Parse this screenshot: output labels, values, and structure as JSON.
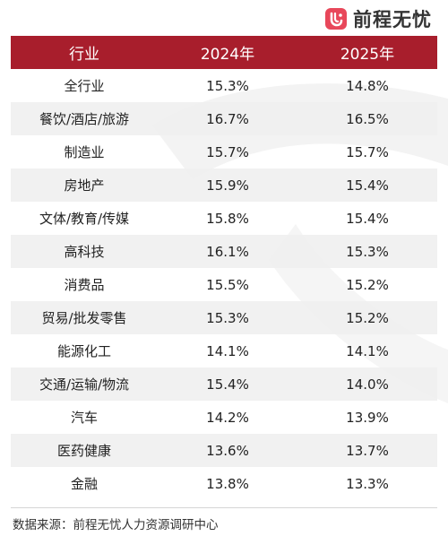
{
  "brand": {
    "name": "前程无忧",
    "accent": "#a81e2c",
    "logo_color": "#e8475a"
  },
  "table": {
    "headers": [
      "行业",
      "2024年",
      "2025年"
    ],
    "rows": [
      {
        "industry": "全行业",
        "y2024": "15.3%",
        "y2025": "14.8%"
      },
      {
        "industry": "餐饮/酒店/旅游",
        "y2024": "16.7%",
        "y2025": "16.5%"
      },
      {
        "industry": "制造业",
        "y2024": "15.7%",
        "y2025": "15.7%"
      },
      {
        "industry": "房地产",
        "y2024": "15.9%",
        "y2025": "15.4%"
      },
      {
        "industry": "文体/教育/传媒",
        "y2024": "15.8%",
        "y2025": "15.4%"
      },
      {
        "industry": "高科技",
        "y2024": "16.1%",
        "y2025": "15.3%"
      },
      {
        "industry": "消费品",
        "y2024": "15.5%",
        "y2025": "15.2%"
      },
      {
        "industry": "贸易/批发零售",
        "y2024": "15.3%",
        "y2025": "15.2%"
      },
      {
        "industry": "能源化工",
        "y2024": "14.1%",
        "y2025": "14.1%"
      },
      {
        "industry": "交通/运输/物流",
        "y2024": "15.4%",
        "y2025": "14.0%"
      },
      {
        "industry": "汽车",
        "y2024": "14.2%",
        "y2025": "13.9%"
      },
      {
        "industry": "医药健康",
        "y2024": "13.6%",
        "y2025": "13.7%"
      },
      {
        "industry": "金融",
        "y2024": "13.8%",
        "y2025": "13.3%"
      }
    ]
  },
  "footer": {
    "source": "数据来源：前程无忧人力资源调研中心"
  }
}
